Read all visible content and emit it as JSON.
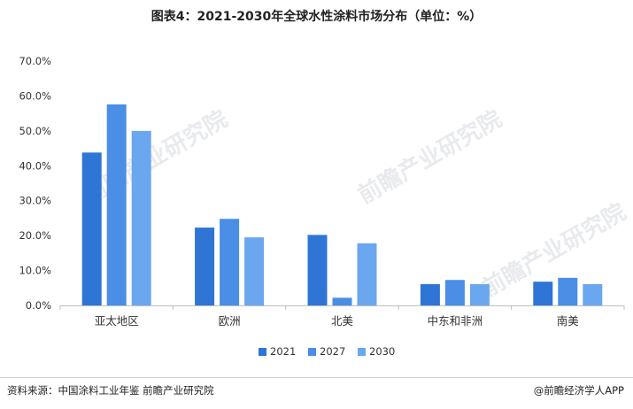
{
  "title": "图表4：2021-2030年全球水性涂料市场分布（单位：%）",
  "source": "资料来源：中国涂料工业年鉴 前瞻产业研究院",
  "brand": "@前瞻经济学人APP",
  "watermark_text": "前瞻产业研究院",
  "colors": {
    "series": [
      "#2e75d6",
      "#4a8ee6",
      "#6aa7ee"
    ],
    "axis": "#bfbfbf",
    "tick_text": "#333333"
  },
  "chart_data": {
    "type": "bar",
    "categories": [
      "亚太地区",
      "欧洲",
      "北美",
      "中东和非洲",
      "南美"
    ],
    "series": [
      {
        "name": "2021",
        "values": [
          43.8,
          22.3,
          20.2,
          6.1,
          6.8
        ]
      },
      {
        "name": "2027",
        "values": [
          57.6,
          24.8,
          2.2,
          7.3,
          7.9
        ]
      },
      {
        "name": "2030",
        "values": [
          50.0,
          19.5,
          17.8,
          6.1,
          6.1
        ]
      }
    ],
    "ylim": [
      0,
      70
    ],
    "yticks": [
      "0.0%",
      "10.0%",
      "20.0%",
      "30.0%",
      "40.0%",
      "50.0%",
      "60.0%",
      "70.0%"
    ],
    "grid": false,
    "legend": "bottom"
  }
}
